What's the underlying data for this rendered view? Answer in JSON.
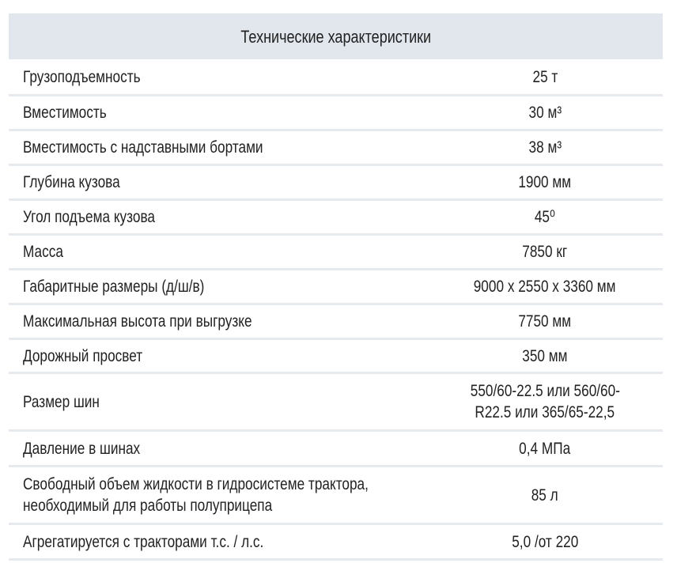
{
  "table": {
    "title": "Технические характеристики",
    "rows": [
      {
        "label": [
          "Грузоподъемность"
        ],
        "value": [
          "25 т"
        ]
      },
      {
        "label": [
          "Вместимость"
        ],
        "value": [
          "30 м³"
        ]
      },
      {
        "label": [
          "Вместимость с надставными бортами"
        ],
        "value": [
          "38 м³"
        ]
      },
      {
        "label": [
          "Глубина кузова"
        ],
        "value": [
          "1900 мм"
        ]
      },
      {
        "label": [
          "Угол подъема кузова"
        ],
        "value": [
          "45⁰"
        ]
      },
      {
        "label": [
          "Масса"
        ],
        "value": [
          "7850 кг"
        ]
      },
      {
        "label": [
          "Габаритные размеры (д/ш/в)"
        ],
        "value": [
          "9000 x 2550 x 3360 мм"
        ]
      },
      {
        "label": [
          "Максимальная высота при выгрузке"
        ],
        "value": [
          "7750 мм"
        ]
      },
      {
        "label": [
          "Дорожный просвет"
        ],
        "value": [
          "350 мм"
        ]
      },
      {
        "label": [
          "Размер шин"
        ],
        "value": [
          "550/60-22.5 или 560/60-",
          "R22.5 или 365/65-22,5"
        ]
      },
      {
        "label": [
          "Давление в шинах"
        ],
        "value": [
          "0,4 МПа"
        ]
      },
      {
        "label": [
          "Свободный объем жидкости в гидросистеме трактора,",
          "необходимый для работы полуприцепа"
        ],
        "value": [
          "85 л"
        ]
      },
      {
        "label": [
          "Агрегатируется с тракторами т.с. / л.с."
        ],
        "value": [
          "5,0 /от 220"
        ]
      }
    ]
  }
}
